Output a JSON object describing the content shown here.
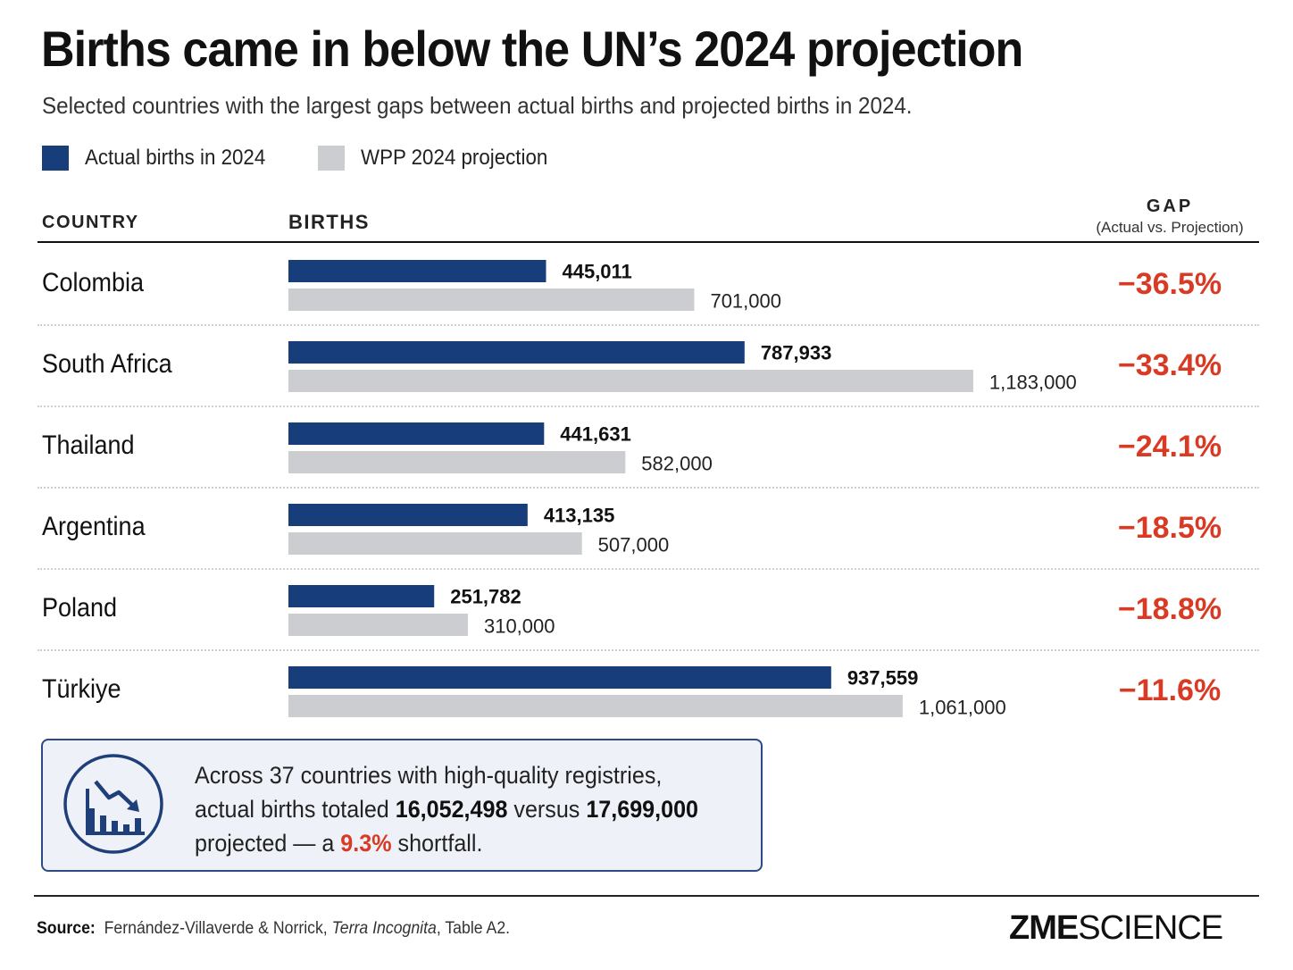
{
  "title": "Births came in below the UN’s 2024 projection",
  "subtitle": "Selected countries with the largest gaps between actual births and projected births in 2024.",
  "legend": [
    {
      "label": "Actual births in 2024",
      "color": "#173d7a"
    },
    {
      "label": "WPP 2024 projection",
      "color": "#cbcdd1"
    }
  ],
  "columns": {
    "country": "COUNTRY",
    "births": "BIRTHS",
    "gap": "GAP",
    "gap_sub": "(Actual vs. Projection)"
  },
  "colors": {
    "actual": "#173d7a",
    "projection": "#cbcdd1",
    "gap": "#d83a24",
    "accent_border": "#2b4a86"
  },
  "chart_data": {
    "type": "bar",
    "orientation": "horizontal",
    "categories": [
      "Colombia",
      "South Africa",
      "Thailand",
      "Argentina",
      "Poland",
      "Türkiye"
    ],
    "series": [
      {
        "name": "Actual births in 2024",
        "values": [
          445011,
          787933,
          441631,
          413135,
          251782,
          937559
        ],
        "labels": [
          "445,011",
          "787,933",
          "441,631",
          "413,135",
          "251,782",
          "937,559"
        ]
      },
      {
        "name": "WPP 2024 projection",
        "values": [
          701000,
          1183000,
          582000,
          507000,
          310000,
          1061000
        ],
        "labels": [
          "701,000",
          "1,183,000",
          "582,000",
          "507,000",
          "310,000",
          "1,061,000"
        ]
      }
    ],
    "gaps": [
      "−36.5%",
      "−33.4%",
      "−24.1%",
      "−18.5%",
      "−18.8%",
      "−11.6%"
    ],
    "xlim": [
      0,
      1234000
    ],
    "grid": false,
    "legend_position": "top-left"
  },
  "callout": {
    "line1": "Across 37 countries with high-quality registries,",
    "line2_pre": "actual births totaled ",
    "line2_actual": "16,052,498",
    "line2_mid": " versus ",
    "line2_proj": "17,699,000",
    "line3_pre": "projected — a ",
    "line3_pct": "9.3%",
    "line3_post": " shortfall.",
    "icon": "declining-bar-chart-icon"
  },
  "source": {
    "label": "Source:",
    "authors": "Fernández-Villaverde & Norrick, ",
    "work": "Terra Incognita",
    "rest": ", Table A2."
  },
  "logo": {
    "bold": "ZME",
    "light": "SCIENCE"
  }
}
